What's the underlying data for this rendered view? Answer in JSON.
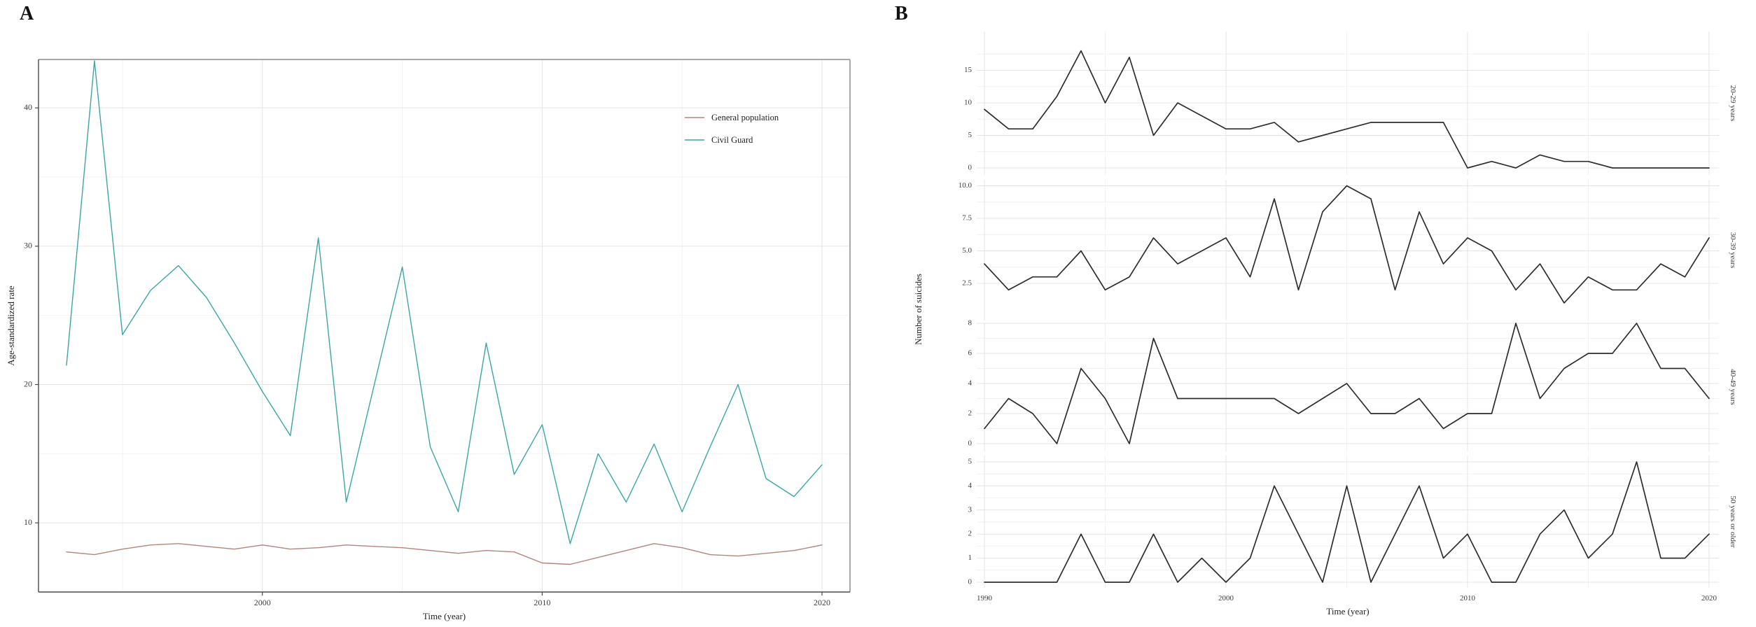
{
  "figure": {
    "panel_a_letter": "A",
    "panel_b_letter": "B"
  },
  "colors": {
    "general_population": "#b5847b",
    "civil_guard": "#3aa7a3",
    "facet_line": "#2d2d2d",
    "grid_major": "#e4e4e4",
    "grid_minor": "#f2f2f2",
    "axis_dark": "#4a4a4a",
    "axis_light": "#a8a8a8",
    "tick_text": "#3c3c3c"
  },
  "chart_data": [
    {
      "id": "panel_a",
      "type": "line",
      "title": "",
      "xlabel": "Time (year)",
      "ylabel": "Age-standardized rate",
      "legend_position": "inside-right",
      "grid": true,
      "xlim": [
        1992,
        2021
      ],
      "ylim": [
        5,
        43.5
      ],
      "x_ticks": [
        "2000",
        "2010",
        "2020"
      ],
      "x_tick_values": [
        2000,
        2010,
        2020
      ],
      "x_minor_values": [
        1995,
        2005,
        2015
      ],
      "y_ticks": [
        "10",
        "20",
        "30",
        "40"
      ],
      "y_tick_values": [
        10,
        20,
        30,
        40
      ],
      "y_minor_values": [
        15,
        25,
        35
      ],
      "x": [
        1993,
        1994,
        1995,
        1996,
        1997,
        1998,
        1999,
        2000,
        2001,
        2002,
        2003,
        2004,
        2005,
        2006,
        2007,
        2008,
        2009,
        2010,
        2011,
        2012,
        2013,
        2014,
        2015,
        2016,
        2017,
        2018,
        2019,
        2020
      ],
      "series": [
        {
          "name": "General population",
          "values": [
            7.9,
            7.7,
            8.1,
            8.4,
            8.5,
            8.3,
            8.1,
            8.4,
            8.1,
            8.2,
            8.4,
            8.3,
            8.2,
            8.0,
            7.8,
            8.0,
            7.9,
            7.1,
            7.0,
            7.5,
            8.0,
            8.5,
            8.2,
            7.7,
            7.6,
            7.8,
            8.0,
            8.4
          ]
        },
        {
          "name": "Civil Guard",
          "values": [
            21.4,
            43.4,
            23.6,
            26.8,
            28.6,
            26.3,
            23.0,
            19.5,
            16.3,
            30.6,
            11.5,
            20.0,
            28.5,
            15.5,
            10.8,
            23.0,
            13.5,
            17.1,
            8.5,
            15.0,
            11.5,
            15.7,
            10.8,
            15.5,
            20.0,
            13.2,
            11.9,
            14.2
          ]
        }
      ]
    },
    {
      "id": "panel_b",
      "type": "line-facets",
      "title": "",
      "xlabel": "Time (year)",
      "ylabel": "Number of suicides",
      "grid": true,
      "x_ticks": [
        "1990",
        "2000",
        "2010",
        "2020"
      ],
      "x_tick_values": [
        1990,
        2000,
        2010,
        2020
      ],
      "x_minor_values": [
        1995,
        2005,
        2015
      ],
      "x": [
        1990,
        1991,
        1992,
        1993,
        1994,
        1995,
        1996,
        1997,
        1998,
        1999,
        2000,
        2001,
        2002,
        2003,
        2004,
        2005,
        2006,
        2007,
        2008,
        2009,
        2010,
        2011,
        2012,
        2013,
        2014,
        2015,
        2016,
        2017,
        2018,
        2019,
        2020
      ],
      "facets": [
        {
          "label": "20-29 years",
          "y_ticks": [
            "0",
            "5",
            "10",
            "15"
          ],
          "y_tick_values": [
            0,
            5,
            10,
            15
          ],
          "values": [
            9,
            6,
            6,
            11,
            18,
            10,
            17,
            5,
            10,
            8,
            6,
            6,
            7,
            4,
            5,
            6,
            7,
            7,
            7,
            7,
            0,
            1,
            0,
            2,
            1,
            1,
            0,
            0,
            0,
            0,
            0
          ]
        },
        {
          "label": "30-39 years",
          "y_ticks": [
            "2.5",
            "5.0",
            "7.5",
            "10.0"
          ],
          "y_tick_values": [
            2.5,
            5,
            7.5,
            10
          ],
          "values": [
            4,
            2,
            3,
            3,
            5,
            2,
            3,
            6,
            4,
            5,
            6,
            3,
            9,
            2,
            8,
            10,
            9,
            2,
            8,
            4,
            6,
            5,
            2,
            4,
            1,
            3,
            2,
            2,
            4,
            3,
            6
          ]
        },
        {
          "label": "40-49 years",
          "y_ticks": [
            "0",
            "2",
            "4",
            "6",
            "8"
          ],
          "y_tick_values": [
            0,
            2,
            4,
            6,
            8
          ],
          "values": [
            1,
            3,
            2,
            0,
            5,
            3,
            0,
            7,
            3,
            3,
            3,
            3,
            3,
            2,
            3,
            4,
            2,
            2,
            3,
            1,
            2,
            2,
            8,
            3,
            5,
            6,
            6,
            8,
            5,
            5,
            3
          ]
        },
        {
          "label": "50 years or older",
          "y_ticks": [
            "0",
            "1",
            "2",
            "3",
            "4",
            "5"
          ],
          "y_tick_values": [
            0,
            1,
            2,
            3,
            4,
            5
          ],
          "values": [
            0,
            0,
            0,
            0,
            2,
            0,
            0,
            2,
            0,
            1,
            0,
            1,
            4,
            2,
            0,
            4,
            0,
            2,
            4,
            1,
            2,
            0,
            0,
            2,
            3,
            1,
            2,
            5,
            1,
            1,
            2
          ]
        }
      ]
    }
  ]
}
